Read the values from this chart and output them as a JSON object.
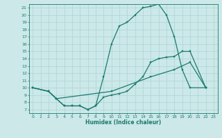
{
  "xlabel": "Humidex (Indice chaleur)",
  "bg_color": "#cce8e8",
  "line_color": "#1a7a6e",
  "grid_color": "#aad4d4",
  "xlim": [
    -0.5,
    23.5
  ],
  "ylim": [
    6.5,
    21.5
  ],
  "yticks": [
    7,
    8,
    9,
    10,
    11,
    12,
    13,
    14,
    15,
    16,
    17,
    18,
    19,
    20,
    21
  ],
  "xticks": [
    0,
    1,
    2,
    3,
    4,
    5,
    6,
    7,
    8,
    9,
    10,
    11,
    12,
    13,
    14,
    15,
    16,
    17,
    18,
    19,
    20,
    21,
    22,
    23
  ],
  "curve1_x": [
    0,
    2,
    3,
    4,
    5,
    6,
    7,
    8,
    9,
    10,
    11,
    12,
    13,
    14,
    15,
    16,
    17,
    18,
    19,
    20,
    22
  ],
  "curve1_y": [
    10,
    9.5,
    8.5,
    7.5,
    7.5,
    7.5,
    7.0,
    7.5,
    11.5,
    16,
    18.5,
    19,
    20,
    21,
    21.2,
    21.5,
    20,
    17,
    12.5,
    10,
    10
  ],
  "curve2_x": [
    0,
    2,
    3,
    4,
    5,
    6,
    7,
    8,
    9,
    10,
    11,
    12,
    13,
    14,
    15,
    16,
    17,
    18,
    19,
    20,
    22
  ],
  "curve2_y": [
    10,
    9.5,
    8.5,
    7.5,
    7.5,
    7.5,
    7.0,
    7.5,
    8.7,
    9.0,
    9.2,
    9.5,
    10.5,
    11.5,
    13.5,
    14.0,
    14.2,
    14.3,
    15.0,
    15.0,
    10
  ],
  "curve3_x": [
    0,
    2,
    3,
    10,
    15,
    18,
    20,
    22
  ],
  "curve3_y": [
    10,
    9.5,
    8.5,
    9.5,
    11.5,
    12.5,
    13.5,
    10
  ]
}
